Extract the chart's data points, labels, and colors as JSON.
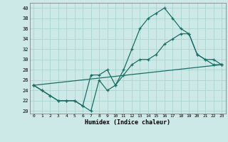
{
  "xlabel": "Humidex (Indice chaleur)",
  "xlim": [
    -0.5,
    23.5
  ],
  "ylim": [
    19.5,
    41.0
  ],
  "xticks": [
    0,
    1,
    2,
    3,
    4,
    5,
    6,
    7,
    8,
    9,
    10,
    11,
    12,
    13,
    14,
    15,
    16,
    17,
    18,
    19,
    20,
    21,
    22,
    23
  ],
  "yticks": [
    20,
    22,
    24,
    26,
    28,
    30,
    32,
    34,
    36,
    38,
    40
  ],
  "bg_color": "#cce9e7",
  "line_color": "#1a6e65",
  "grid_color": "#aad4d0",
  "line1_x": [
    0,
    1,
    2,
    3,
    4,
    5,
    6,
    7,
    8,
    9,
    10,
    11,
    12,
    13,
    14,
    15,
    16,
    17,
    18,
    19,
    20,
    21,
    22,
    23
  ],
  "line1_y": [
    25,
    24,
    23,
    22,
    22,
    22,
    21,
    20,
    26,
    24,
    25,
    28,
    32,
    36,
    38,
    39,
    40,
    38,
    36,
    35,
    31,
    30,
    29,
    29
  ],
  "line2_x": [
    0,
    1,
    2,
    3,
    4,
    5,
    6,
    7,
    8,
    9,
    10,
    11,
    12,
    13,
    14,
    15,
    16,
    17,
    18,
    19,
    20,
    21,
    22,
    23
  ],
  "line2_y": [
    25,
    24,
    23,
    22,
    22,
    22,
    21,
    27,
    27,
    28,
    25,
    27,
    29,
    30,
    30,
    31,
    33,
    34,
    35,
    35,
    31,
    30,
    30,
    29
  ],
  "line3_x": [
    0,
    23
  ],
  "line3_y": [
    25,
    29
  ]
}
